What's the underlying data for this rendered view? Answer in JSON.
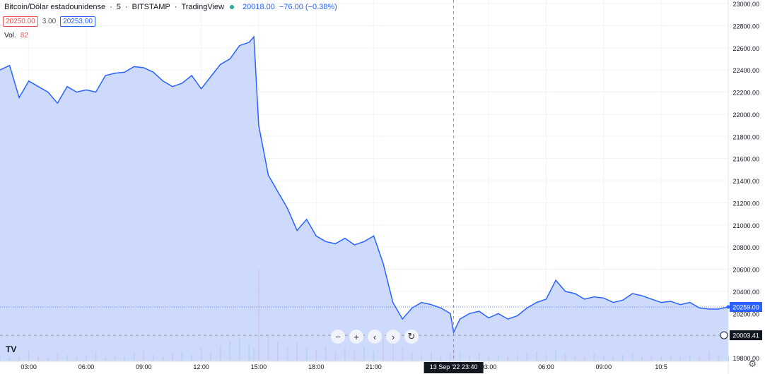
{
  "legend": {
    "symbol": "Bitcoin/Dólar estadounidense",
    "interval": "5",
    "exchange": "BITSTAMP",
    "source": "TradingView",
    "last": "20018.00",
    "change": "−76.00 (−0.38%)"
  },
  "quotes": {
    "bid": "20250.00",
    "spread": "3.00",
    "ask": "20253.00"
  },
  "volume": {
    "label": "Vol.",
    "value": "82"
  },
  "crosshair": {
    "date_label": "13 Sep '22",
    "time_label": "23:40",
    "price_label": "20003.41"
  },
  "current_price_label": "20259.00",
  "nav": {
    "zoom_out": "−",
    "zoom_in": "+",
    "left": "‹",
    "right": "›",
    "reset": "↻"
  },
  "icons": {
    "settings": "gear-icon",
    "logo": "tradingview-logo",
    "add": "plus-circle-icon"
  },
  "colors": {
    "line": "#2962ff",
    "fill": "#c6d3fb",
    "vol_up": "#26a69a",
    "vol_down": "#ef5350",
    "grid": "#f0f3fa"
  },
  "chart_data": {
    "type": "area",
    "series": [
      {
        "x": [
          0,
          0.5,
          1,
          1.5,
          2,
          2.5,
          3,
          3.5,
          4,
          4.5,
          5,
          5.5,
          6,
          6.5,
          7,
          7.5,
          8,
          8.5,
          9,
          9.5,
          10,
          10.5,
          11,
          11.5,
          12,
          12.5,
          13,
          13.25,
          13.5,
          14,
          14.5,
          15,
          15.5,
          16,
          16.5,
          17,
          17.5,
          18,
          18.5,
          19,
          19.5,
          20,
          20.5,
          21,
          21.5,
          22,
          22.5,
          23,
          23.5,
          23.67,
          24,
          24.5,
          25,
          25.5,
          26,
          26.5,
          27,
          27.5,
          28,
          28.5,
          29,
          29.5,
          30,
          30.5,
          31,
          31.5,
          32,
          32.5,
          33,
          33.5,
          34,
          34.5,
          35,
          35.5,
          36,
          36.5,
          37,
          37.5,
          38
        ],
        "values": [
          22400,
          22440,
          22150,
          22300,
          22250,
          22200,
          22100,
          22250,
          22200,
          22220,
          22200,
          22350,
          22370,
          22380,
          22430,
          22420,
          22380,
          22300,
          22250,
          22280,
          22350,
          22230,
          22340,
          22450,
          22500,
          22620,
          22650,
          22700,
          21900,
          21450,
          21300,
          21150,
          20950,
          21050,
          20900,
          20850,
          20830,
          20880,
          20820,
          20850,
          20900,
          20650,
          20300,
          20150,
          20250,
          20300,
          20280,
          20250,
          20200,
          20030,
          20150,
          20200,
          20220,
          20160,
          20200,
          20150,
          20180,
          20250,
          20300,
          20330,
          20500,
          20400,
          20380,
          20330,
          20350,
          20340,
          20300,
          20320,
          20380,
          20360,
          20330,
          20300,
          20310,
          20280,
          20300,
          20250,
          20240,
          20240,
          20259
        ]
      }
    ],
    "volume": [
      4,
      2,
      3,
      6,
      3,
      2,
      5,
      4,
      3,
      4,
      6,
      2,
      4,
      3,
      5,
      7,
      4,
      3,
      5,
      6,
      4,
      8,
      5,
      9,
      12,
      14,
      10,
      8,
      55,
      15,
      12,
      9,
      11,
      8,
      7,
      9,
      6,
      8,
      7,
      9,
      6,
      14,
      12,
      8,
      5,
      4,
      6,
      3,
      5,
      9,
      6,
      4,
      5,
      3,
      4,
      3,
      4,
      5,
      6,
      4,
      7,
      5,
      4,
      3,
      5,
      4,
      3,
      4,
      5,
      3,
      4,
      3,
      4,
      3,
      4,
      3,
      6,
      4,
      3
    ],
    "x_ticks": [
      {
        "x": 1.5,
        "label": "03:00"
      },
      {
        "x": 4.5,
        "label": "06:00"
      },
      {
        "x": 7.5,
        "label": "09:00"
      },
      {
        "x": 10.5,
        "label": "12:00"
      },
      {
        "x": 13.5,
        "label": "15:00"
      },
      {
        "x": 16.5,
        "label": "18:00"
      },
      {
        "x": 19.5,
        "label": "21:00"
      },
      {
        "x": 25.5,
        "label": "03:00"
      },
      {
        "x": 28.5,
        "label": "06:00"
      },
      {
        "x": 31.5,
        "label": "09:00"
      },
      {
        "x": 34.5,
        "label": "10:5"
      }
    ],
    "y_ticks": [
      19800,
      20000,
      20200,
      20400,
      20600,
      20800,
      21000,
      21200,
      21400,
      21600,
      21800,
      22000,
      22200,
      22400,
      22600,
      22800,
      23000
    ],
    "ylim": [
      19800,
      23000
    ],
    "xlim": [
      0,
      38
    ],
    "crosshair_x": 23.67,
    "crosshair_y": 20003.41,
    "last_value": 20259
  }
}
